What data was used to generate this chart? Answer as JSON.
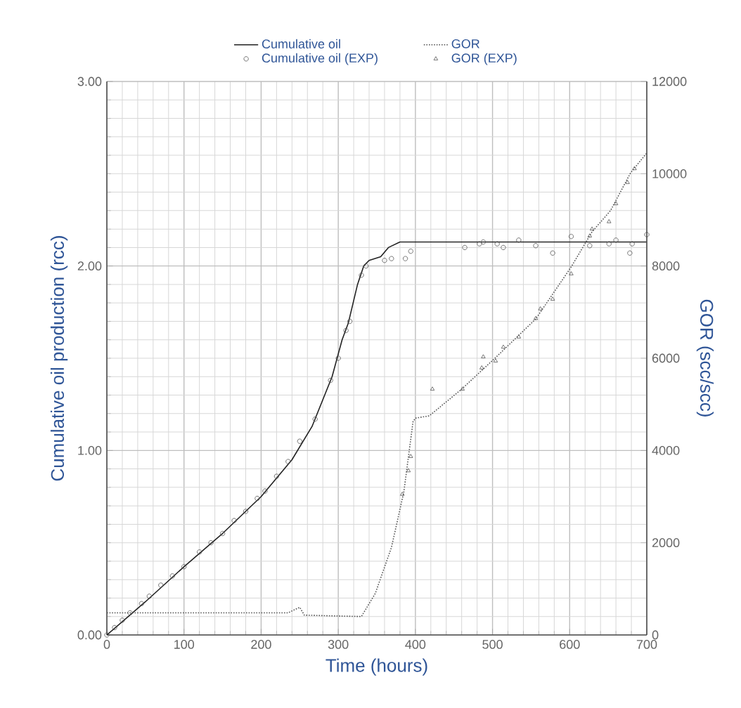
{
  "chart_data": {
    "type": "line",
    "xlabel": "Time (hours)",
    "ylabel": "Cumulative oil production (rcc)",
    "y2label": "GOR (scc/scc)",
    "xlim": [
      0,
      700
    ],
    "xticks": [
      0,
      100,
      200,
      300,
      400,
      500,
      600,
      700
    ],
    "ylim": [
      0,
      3
    ],
    "yticks": [
      {
        "value": 0,
        "label": "0.00"
      },
      {
        "value": 1,
        "label": "1.00"
      },
      {
        "value": 2,
        "label": "2.00"
      },
      {
        "value": 3,
        "label": "3.00"
      }
    ],
    "y2lim": [
      0,
      12000
    ],
    "y2ticks": [
      0,
      2000,
      4000,
      6000,
      8000,
      10000,
      12000
    ],
    "grid": true,
    "legend": "top",
    "series": [
      {
        "name": "Cumulative oil",
        "color": "#222222",
        "line_style": "solid",
        "marker": "none",
        "x": [
          0,
          25,
          50,
          100,
          150,
          200,
          240,
          266,
          292,
          305,
          313,
          325,
          333,
          340,
          355,
          365,
          380,
          700
        ],
        "values": [
          0,
          0.09,
          0.18,
          0.37,
          0.55,
          0.75,
          0.95,
          1.13,
          1.4,
          1.6,
          1.69,
          1.9,
          2.0,
          2.03,
          2.05,
          2.1,
          2.13,
          2.13
        ]
      },
      {
        "name": "GOR",
        "axis": "y2",
        "color": "#555555",
        "line_style": "dotted",
        "marker": "none",
        "x": [
          0,
          235,
          250,
          256,
          300,
          330,
          348,
          369,
          385,
          397,
          400,
          418,
          460,
          505,
          556,
          602,
          629,
          653,
          679,
          700
        ],
        "values": [
          480,
          480,
          600,
          430,
          410,
          400,
          900,
          1900,
          3100,
          4630,
          4700,
          4750,
          5330,
          6030,
          6850,
          7980,
          8740,
          9200,
          10020,
          10450
        ]
      },
      {
        "name": "Cumulative oil (EXP)",
        "type": "scatter",
        "color": "#555555",
        "marker": "circle",
        "x": [
          0,
          10,
          20,
          30,
          45,
          55,
          70,
          85,
          100,
          120,
          135,
          150,
          165,
          180,
          195,
          205,
          220,
          235,
          250,
          270,
          290,
          300,
          310,
          315,
          330,
          336,
          360,
          369,
          387,
          394,
          464,
          483,
          488,
          506,
          514,
          534,
          556,
          578,
          602,
          626,
          651,
          660,
          678,
          681,
          700
        ],
        "values": [
          0,
          0.04,
          0.08,
          0.12,
          0.17,
          0.21,
          0.27,
          0.32,
          0.37,
          0.45,
          0.5,
          0.55,
          0.62,
          0.67,
          0.74,
          0.78,
          0.86,
          0.94,
          1.05,
          1.17,
          1.38,
          1.5,
          1.65,
          1.7,
          1.95,
          2.0,
          2.03,
          2.04,
          2.04,
          2.08,
          2.1,
          2.12,
          2.13,
          2.12,
          2.1,
          2.14,
          2.11,
          2.07,
          2.16,
          2.11,
          2.12,
          2.14,
          2.07,
          2.12,
          2.17
        ]
      },
      {
        "name": "GOR (EXP)",
        "type": "scatter",
        "axis": "y2",
        "color": "#555555",
        "marker": "triangle",
        "x": [
          383,
          391,
          394,
          422,
          461,
          486,
          488,
          504,
          514,
          534,
          556,
          562,
          578,
          602,
          626,
          629,
          651,
          660,
          675,
          684
        ],
        "values": [
          3050,
          3560,
          3870,
          5330,
          5330,
          5790,
          6030,
          5940,
          6240,
          6460,
          6860,
          7070,
          7280,
          7830,
          8650,
          8800,
          8960,
          9350,
          9810,
          10110
        ]
      }
    ]
  }
}
